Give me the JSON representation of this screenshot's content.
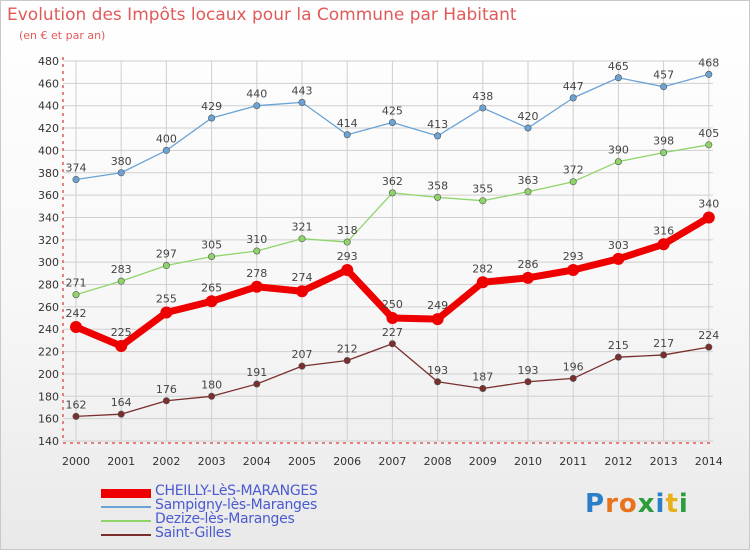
{
  "title": "Evolution des Impôts locaux pour la Commune par Habitant",
  "subtitle": "(en € et par an)",
  "logo_text": "Proxiti",
  "colors": {
    "title": "#e05a5a",
    "axis": "#e05a5a",
    "grid": "#cfcfcf",
    "value_label": "#444444"
  },
  "chart_data": {
    "type": "line",
    "title": "Evolution des Impôts locaux pour la Commune par Habitant",
    "subtitle": "(en € et par an)",
    "xlabel": "",
    "ylabel": "",
    "x": [
      "2000",
      "2001",
      "2002",
      "2003",
      "2004",
      "2005",
      "2006",
      "2007",
      "2008",
      "2009",
      "2010",
      "2011",
      "2012",
      "2013",
      "2014"
    ],
    "ylim": [
      140,
      480
    ],
    "yticks": [
      140,
      160,
      180,
      200,
      220,
      240,
      260,
      280,
      300,
      320,
      340,
      360,
      380,
      400,
      420,
      440,
      460,
      480
    ],
    "grid": true,
    "legend_position": "bottom-left",
    "series": [
      {
        "name": "CHEILLY-LèS-MARANGES",
        "color": "#ee0000",
        "emphasis": true,
        "values": [
          242,
          225,
          255,
          265,
          278,
          274,
          293,
          250,
          249,
          282,
          286,
          293,
          303,
          316,
          340
        ]
      },
      {
        "name": "Sampigny-lès-Maranges",
        "color": "#6ba3d6",
        "emphasis": false,
        "values": [
          374,
          380,
          400,
          429,
          440,
          443,
          414,
          425,
          413,
          438,
          420,
          447,
          465,
          457,
          468
        ]
      },
      {
        "name": "Dezize-lès-Maranges",
        "color": "#8fd46a",
        "emphasis": false,
        "values": [
          271,
          283,
          297,
          305,
          310,
          321,
          318,
          362,
          358,
          355,
          363,
          372,
          390,
          398,
          405
        ]
      },
      {
        "name": "Saint-Gilles",
        "color": "#7a2e2e",
        "emphasis": false,
        "values": [
          162,
          164,
          176,
          180,
          191,
          207,
          212,
          227,
          193,
          187,
          193,
          196,
          215,
          217,
          224
        ]
      }
    ]
  }
}
